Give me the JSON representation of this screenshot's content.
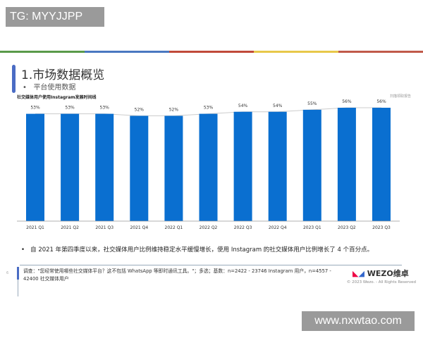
{
  "overlay": {
    "tag": "TG: MYYJJPP",
    "watermark": "www.nxwtao.com"
  },
  "colors": {
    "bar": "#0a6fd0",
    "accent": "#4a6cc4",
    "stripes": [
      "#5a9a4a",
      "#4a78c0",
      "#c04a3a",
      "#e8c84a",
      "#c05a4a"
    ]
  },
  "header": {
    "title": "1.市场数据概览",
    "subtitle": "平台使用数据"
  },
  "chart_data": {
    "type": "bar",
    "title": "社交媒体用户使用Instagram发展时间线",
    "source_label": "扫描领取报告",
    "categories": [
      "2021 Q1",
      "2021 Q2",
      "2021 Q3",
      "2021 Q4",
      "2022 Q1",
      "2022 Q2",
      "2022 Q3",
      "2022 Q4",
      "2023 Q1",
      "2023 Q2",
      "2023 Q3"
    ],
    "values": [
      53,
      53,
      53,
      52,
      52,
      53,
      54,
      54,
      55,
      56,
      56
    ],
    "value_labels": [
      "53%",
      "53%",
      "53%",
      "52%",
      "52%",
      "53%",
      "54%",
      "54%",
      "55%",
      "56%",
      "56%"
    ],
    "ylim": [
      0,
      56
    ],
    "grid": false,
    "trend_line": true
  },
  "note": "自 2021 年第四季度以来，社交媒体用户比例维持稳定水平缓慢增长，使用 Instagram 的社交媒体用户比例增长了 4 个百分点。",
  "footer": {
    "page": "6",
    "survey": "调查：\"您经常使用哪些社交媒体平台？这不包括 WhatsApp 等即时通讯工具。\"；多选；基数：n=2422 - 23746 Instagram 用户，n=4557 - 42400 社交媒体用户",
    "logo": "WEZO维卓",
    "copyright": "© 2023 Wezo. - All Rights Reserved"
  }
}
